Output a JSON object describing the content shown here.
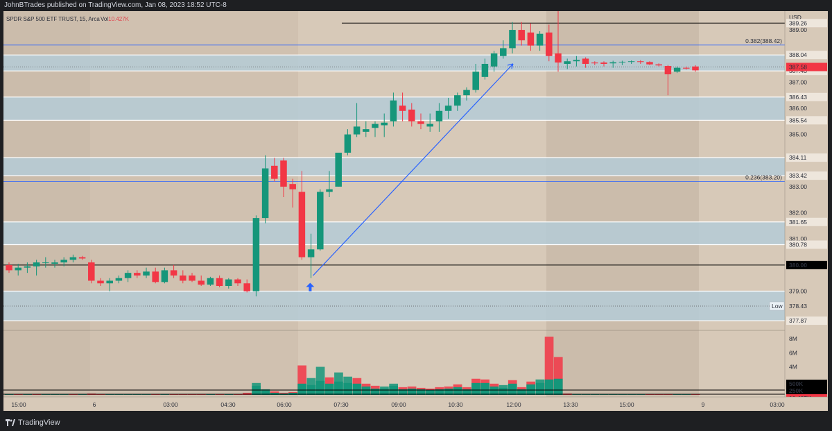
{
  "header": {
    "attribution": "JohnBTrades published on TradingView.com, Jan 08, 2023 18:52 UTC-8"
  },
  "footer": {
    "brand": "TradingView"
  },
  "chart_data": {
    "type": "candlestick",
    "legend": {
      "symbol": "SPDR S&P 500 ETF TRUST, 15, Arca",
      "vol_label": "Vol",
      "vol_value": "10.427K"
    },
    "currency": "USD",
    "ylim": [
      377.5,
      389.4
    ],
    "price_ticks": [
      "389.00",
      "387.00",
      "386.00",
      "385.00",
      "383.00",
      "382.00",
      "381.00",
      "379.00"
    ],
    "price_tick_values": [
      389.0,
      387.0,
      386.0,
      385.0,
      383.0,
      382.0,
      381.0,
      379.0
    ],
    "level_labels": [
      {
        "text": "389.26",
        "price": 389.26
      },
      {
        "text": "388.04",
        "price": 388.04
      },
      {
        "text": "387.43",
        "price": 387.43
      },
      {
        "text": "386.43",
        "price": 386.43
      },
      {
        "text": "385.54",
        "price": 385.54
      },
      {
        "text": "384.11",
        "price": 384.11
      },
      {
        "text": "383.42",
        "price": 383.42
      },
      {
        "text": "381.65",
        "price": 381.65
      },
      {
        "text": "380.78",
        "price": 380.78
      },
      {
        "text": "377.87",
        "price": 377.87
      }
    ],
    "last_price": {
      "text": "387.58",
      "price": 387.58
    },
    "hline_label": {
      "text": "380.00",
      "price": 380.0
    },
    "low_marker": {
      "label": "Low",
      "text": "378.43",
      "price": 378.43
    },
    "fib_levels": [
      {
        "label": "0.382(388.42)",
        "price": 388.42
      },
      {
        "label": "0.236(383.20)",
        "price": 383.2
      }
    ],
    "zones": [
      [
        387.43,
        388.04
      ],
      [
        385.54,
        386.43
      ],
      [
        383.42,
        384.11
      ],
      [
        380.78,
        381.65
      ],
      [
        377.87,
        379.0
      ]
    ],
    "time_labels": [
      "15:00",
      "6",
      "03:00",
      "04:30",
      "06:00",
      "07:30",
      "09:00",
      "10:30",
      "12:00",
      "13:30",
      "15:00",
      "9",
      "03:00"
    ],
    "volume_ticks": [
      "8M",
      "6M",
      "4M"
    ],
    "volume_tick_values": [
      8000000,
      6000000,
      4000000
    ],
    "volume_badges": [
      "500K",
      "250K",
      "10.427K"
    ],
    "candles": [
      [
        380.0,
        380.1,
        379.7,
        379.8
      ],
      [
        379.8,
        380.05,
        379.6,
        379.9
      ],
      [
        379.9,
        380.1,
        379.7,
        379.95
      ],
      [
        379.95,
        380.2,
        379.6,
        380.1
      ],
      [
        380.1,
        380.3,
        379.9,
        380.1
      ],
      [
        380.05,
        380.2,
        379.9,
        380.1
      ],
      [
        380.1,
        380.3,
        379.95,
        380.2
      ],
      [
        380.2,
        380.4,
        380.1,
        380.3
      ],
      [
        380.3,
        380.35,
        380.2,
        380.25
      ],
      [
        380.1,
        380.2,
        379.3,
        379.4
      ],
      [
        379.4,
        379.5,
        379.2,
        379.3
      ],
      [
        379.3,
        379.5,
        379.0,
        379.4
      ],
      [
        379.4,
        379.6,
        379.3,
        379.5
      ],
      [
        379.5,
        379.8,
        379.35,
        379.7
      ],
      [
        379.7,
        379.8,
        379.5,
        379.6
      ],
      [
        379.6,
        379.9,
        379.5,
        379.75
      ],
      [
        379.75,
        379.9,
        379.3,
        379.35
      ],
      [
        379.35,
        379.9,
        379.3,
        379.8
      ],
      [
        379.8,
        380.0,
        379.5,
        379.6
      ],
      [
        379.6,
        379.8,
        379.3,
        379.4
      ],
      [
        379.6,
        379.7,
        379.35,
        379.4
      ],
      [
        379.4,
        379.6,
        379.2,
        379.25
      ],
      [
        379.25,
        379.55,
        379.2,
        379.5
      ],
      [
        379.5,
        379.6,
        379.15,
        379.2
      ],
      [
        379.2,
        379.5,
        379.1,
        379.45
      ],
      [
        379.45,
        379.5,
        379.2,
        379.3
      ],
      [
        379.3,
        379.45,
        378.95,
        379.0
      ],
      [
        379.0,
        381.9,
        378.8,
        381.8
      ],
      [
        381.8,
        384.2,
        381.6,
        383.7
      ],
      [
        383.8,
        384.1,
        383.2,
        383.3
      ],
      [
        384.0,
        384.1,
        382.6,
        383.0
      ],
      [
        383.1,
        383.3,
        382.2,
        382.9
      ],
      [
        382.8,
        383.6,
        380.2,
        380.3
      ],
      [
        380.3,
        381.2,
        379.5,
        380.6
      ],
      [
        380.6,
        382.9,
        380.55,
        382.8
      ],
      [
        382.8,
        383.6,
        382.6,
        382.9
      ],
      [
        383.0,
        384.3,
        383.0,
        384.3
      ],
      [
        384.3,
        385.2,
        384.2,
        385.0
      ],
      [
        385.0,
        386.2,
        384.9,
        385.3
      ],
      [
        385.1,
        385.5,
        384.9,
        385.2
      ],
      [
        385.25,
        385.5,
        384.9,
        385.4
      ],
      [
        385.35,
        385.8,
        384.9,
        385.45
      ],
      [
        385.5,
        386.6,
        385.3,
        386.3
      ],
      [
        386.1,
        386.6,
        385.5,
        385.9
      ],
      [
        385.95,
        386.2,
        385.3,
        385.5
      ],
      [
        385.5,
        385.8,
        385.2,
        385.4
      ],
      [
        385.3,
        385.8,
        385.1,
        385.4
      ],
      [
        385.5,
        386.2,
        385.1,
        385.9
      ],
      [
        385.9,
        386.4,
        385.6,
        386.1
      ],
      [
        386.1,
        386.6,
        385.9,
        386.5
      ],
      [
        386.5,
        386.8,
        386.3,
        386.7
      ],
      [
        386.7,
        387.7,
        386.6,
        387.4
      ],
      [
        387.2,
        387.9,
        387.1,
        387.7
      ],
      [
        387.6,
        388.2,
        387.4,
        388.1
      ],
      [
        388.0,
        388.6,
        387.9,
        388.3
      ],
      [
        388.3,
        389.3,
        388.1,
        389.0
      ],
      [
        389.0,
        389.3,
        388.4,
        388.6
      ],
      [
        388.9,
        389.25,
        388.2,
        388.4
      ],
      [
        388.4,
        388.95,
        388.2,
        388.85
      ],
      [
        388.9,
        389.2,
        387.8,
        388.0
      ],
      [
        388.1,
        389.8,
        387.4,
        387.75
      ],
      [
        387.7,
        387.9,
        387.5,
        387.8
      ],
      [
        387.8,
        388.0,
        387.6,
        387.85
      ],
      [
        387.9,
        387.95,
        387.55,
        387.7
      ],
      [
        387.75,
        387.8,
        387.65,
        387.72
      ],
      [
        387.75,
        387.8,
        387.6,
        387.7
      ],
      [
        387.72,
        387.82,
        387.55,
        387.76
      ],
      [
        387.76,
        387.82,
        387.65,
        387.78
      ],
      [
        387.78,
        387.83,
        387.7,
        387.8
      ],
      [
        387.8,
        387.84,
        387.7,
        387.77
      ],
      [
        387.77,
        387.8,
        387.65,
        387.68
      ],
      [
        387.68,
        387.72,
        387.6,
        387.64
      ],
      [
        387.62,
        387.66,
        386.5,
        387.3
      ],
      [
        387.4,
        387.6,
        387.35,
        387.55
      ],
      [
        387.55,
        387.6,
        387.48,
        387.52
      ],
      [
        387.6,
        387.65,
        387.4,
        387.45
      ]
    ],
    "volumes": [
      [
        0.15,
        0
      ],
      [
        0.1,
        1
      ],
      [
        0.15,
        0
      ],
      [
        0.1,
        1
      ],
      [
        0.05,
        0
      ],
      [
        0.05,
        0
      ],
      [
        0.1,
        0
      ],
      [
        0.1,
        1
      ],
      [
        0.05,
        0
      ],
      [
        0.2,
        1
      ],
      [
        0.1,
        1
      ],
      [
        0.1,
        0
      ],
      [
        0.1,
        0
      ],
      [
        0.1,
        0
      ],
      [
        0.1,
        0
      ],
      [
        0.1,
        0
      ],
      [
        0.1,
        1
      ],
      [
        0.1,
        0
      ],
      [
        0.1,
        1
      ],
      [
        0.1,
        1
      ],
      [
        0.1,
        1
      ],
      [
        0.1,
        1
      ],
      [
        0.1,
        0
      ],
      [
        0.1,
        1
      ],
      [
        0.1,
        0
      ],
      [
        0.1,
        1
      ],
      [
        0.3,
        1
      ],
      [
        1.7,
        0
      ],
      [
        0.8,
        0
      ],
      [
        0.5,
        1
      ],
      [
        0.3,
        1
      ],
      [
        0.4,
        1
      ],
      [
        4.2,
        1
      ],
      [
        2.4,
        0
      ],
      [
        4.0,
        0
      ],
      [
        2.5,
        1
      ],
      [
        3.2,
        0
      ],
      [
        2.6,
        0
      ],
      [
        2.4,
        1
      ],
      [
        1.6,
        1
      ],
      [
        1.3,
        1
      ],
      [
        1.2,
        0
      ],
      [
        1.6,
        0
      ],
      [
        1.1,
        1
      ],
      [
        1.2,
        1
      ],
      [
        1.0,
        1
      ],
      [
        0.9,
        1
      ],
      [
        1.1,
        1
      ],
      [
        1.2,
        1
      ],
      [
        1.5,
        1
      ],
      [
        1.1,
        1
      ],
      [
        2.3,
        1
      ],
      [
        2.2,
        1
      ],
      [
        1.6,
        1
      ],
      [
        1.4,
        0
      ],
      [
        2.1,
        1
      ],
      [
        1.1,
        1
      ],
      [
        1.9,
        1
      ],
      [
        2.2,
        0
      ],
      [
        8.3,
        1
      ],
      [
        5.4,
        1
      ],
      [
        0.2,
        1
      ],
      [
        0.15,
        0
      ],
      [
        0.15,
        0
      ],
      [
        0.1,
        0
      ],
      [
        0.1,
        0
      ],
      [
        0.1,
        0
      ],
      [
        0.1,
        0
      ],
      [
        0.05,
        0
      ],
      [
        0.05,
        0
      ],
      [
        0.1,
        1
      ],
      [
        0.1,
        1
      ],
      [
        0.15,
        1
      ],
      [
        0.1,
        0
      ],
      [
        0.05,
        0
      ],
      [
        0.05,
        1
      ]
    ],
    "volume_overlay": [
      0,
      0,
      0,
      0,
      0,
      0,
      0,
      0,
      0,
      0,
      0,
      0,
      0,
      0,
      0,
      0,
      0,
      0,
      0,
      0,
      0,
      0,
      0,
      0,
      0,
      0,
      0,
      1.3,
      0.6,
      0.3,
      0.2,
      0.3,
      1.6,
      1.4,
      2.0,
      1.6,
      1.9,
      1.7,
      1.6,
      1.2,
      0.9,
      0.9,
      1.3,
      0.8,
      0.9,
      0.8,
      0.7,
      0.8,
      0.9,
      1.1,
      0.8,
      1.7,
      1.7,
      1.2,
      1.0,
      1.6,
      0.8,
      1.5,
      1.7,
      2.2,
      2.3,
      0,
      0,
      0,
      0,
      0,
      0,
      0,
      0,
      0,
      0,
      0,
      0,
      0,
      0,
      0
    ],
    "colors": {
      "up": "#15967a",
      "down": "#f23645",
      "zone": "#b5cbd6",
      "fib": "#2962ff",
      "arrow": "#2962ff"
    }
  }
}
